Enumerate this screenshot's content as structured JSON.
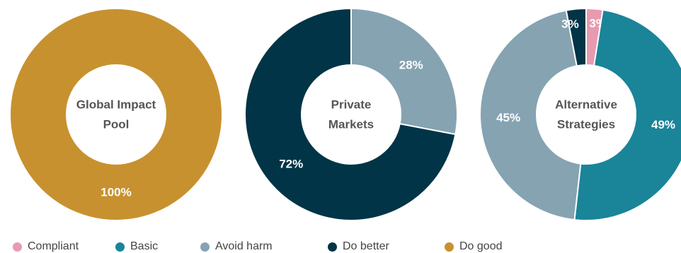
{
  "chart_data": [
    {
      "type": "pie",
      "center_title": [
        "Global Impact",
        "Pool"
      ],
      "slices": [
        {
          "category": "Do good",
          "value": 100,
          "label": "100%"
        }
      ]
    },
    {
      "type": "pie",
      "center_title": [
        "Private",
        "Markets"
      ],
      "slices": [
        {
          "category": "Avoid harm",
          "value": 28,
          "label": "28%"
        },
        {
          "category": "Do better",
          "value": 72,
          "label": "72%"
        }
      ]
    },
    {
      "type": "pie",
      "center_title": [
        "Alternative",
        "Strategies"
      ],
      "slices": [
        {
          "category": "Compliant",
          "value": 2.5,
          "label": "3%"
        },
        {
          "category": "Basic",
          "value": 49,
          "label": "49%"
        },
        {
          "category": "Avoid harm",
          "value": 45,
          "label": "45%"
        },
        {
          "category": "Do better",
          "value": 3,
          "label": "3%"
        }
      ]
    }
  ],
  "legend": [
    {
      "label": "Compliant",
      "color": "#e79ab0"
    },
    {
      "label": "Basic",
      "color": "#1a8499"
    },
    {
      "label": "Avoid harm",
      "color": "#86a3b2"
    },
    {
      "label": "Do better",
      "color": "#003446"
    },
    {
      "label": "Do good",
      "color": "#c8912f"
    }
  ]
}
